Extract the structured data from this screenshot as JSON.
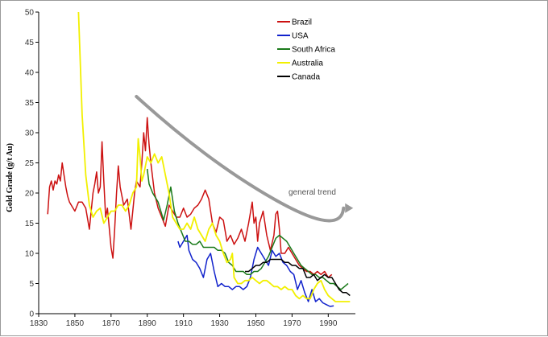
{
  "colors": {
    "brazil": "#cc1111",
    "usa": "#1122cc",
    "south_africa": "#1a7a1a",
    "australia": "#f2f000",
    "canada": "#000000",
    "trend": "#999999"
  },
  "chart_data": {
    "type": "line",
    "title": "",
    "xlabel": "",
    "ylabel": "Gold Grade (g/t Au)",
    "xlim": [
      1830,
      2005
    ],
    "ylim": [
      0,
      50
    ],
    "xticks": [
      1830,
      1850,
      1870,
      1890,
      1910,
      1930,
      1950,
      1970,
      1990
    ],
    "yticks": [
      0,
      5,
      10,
      15,
      20,
      25,
      30,
      35,
      40,
      45,
      50
    ],
    "legend_position": "top-right",
    "annotation": {
      "text": "general trend",
      "arrow": [
        [
          1884,
          36
        ],
        [
          1923,
          24
        ],
        [
          1960,
          19
        ],
        [
          2002,
          17.5
        ]
      ]
    },
    "series": [
      {
        "name": "Brazil",
        "color_key": "brazil",
        "points": [
          [
            1835,
            16.5
          ],
          [
            1836,
            21
          ],
          [
            1837,
            22
          ],
          [
            1838,
            20.5
          ],
          [
            1839,
            22
          ],
          [
            1840,
            21.5
          ],
          [
            1841,
            23
          ],
          [
            1842,
            22
          ],
          [
            1843,
            25
          ],
          [
            1844,
            23
          ],
          [
            1845,
            21
          ],
          [
            1846,
            19.5
          ],
          [
            1847,
            18.5
          ],
          [
            1848,
            18
          ],
          [
            1850,
            17
          ],
          [
            1852,
            18.5
          ],
          [
            1854,
            18.5
          ],
          [
            1856,
            17.5
          ],
          [
            1858,
            14
          ],
          [
            1860,
            20
          ],
          [
            1861,
            21.5
          ],
          [
            1862,
            23.5
          ],
          [
            1863,
            20
          ],
          [
            1864,
            21
          ],
          [
            1865,
            28.5
          ],
          [
            1866,
            22
          ],
          [
            1867,
            16
          ],
          [
            1868,
            17.5
          ],
          [
            1870,
            11
          ],
          [
            1871,
            9.2
          ],
          [
            1872,
            14
          ],
          [
            1873,
            20
          ],
          [
            1874,
            24.5
          ],
          [
            1875,
            21
          ],
          [
            1877,
            18
          ],
          [
            1879,
            19
          ],
          [
            1881,
            14
          ],
          [
            1883,
            20
          ],
          [
            1884,
            22
          ],
          [
            1886,
            21
          ],
          [
            1887,
            25
          ],
          [
            1888,
            30
          ],
          [
            1889,
            27
          ],
          [
            1890,
            32.5
          ],
          [
            1891,
            28
          ],
          [
            1892,
            25
          ],
          [
            1894,
            20
          ],
          [
            1896,
            17.5
          ],
          [
            1898,
            16
          ],
          [
            1900,
            14.5
          ],
          [
            1902,
            18
          ],
          [
            1904,
            17
          ],
          [
            1906,
            16
          ],
          [
            1908,
            16
          ],
          [
            1910,
            17.5
          ],
          [
            1912,
            16
          ],
          [
            1914,
            16.5
          ],
          [
            1916,
            17.5
          ],
          [
            1918,
            18
          ],
          [
            1920,
            19
          ],
          [
            1922,
            20.5
          ],
          [
            1924,
            19
          ],
          [
            1926,
            15
          ],
          [
            1928,
            13.5
          ],
          [
            1930,
            16
          ],
          [
            1932,
            15.5
          ],
          [
            1934,
            12
          ],
          [
            1936,
            13
          ],
          [
            1938,
            11.5
          ],
          [
            1940,
            12.5
          ],
          [
            1942,
            14
          ],
          [
            1944,
            12
          ],
          [
            1946,
            15
          ],
          [
            1948,
            18.5
          ],
          [
            1949,
            15
          ],
          [
            1950,
            16
          ],
          [
            1951,
            12
          ],
          [
            1952,
            15
          ],
          [
            1954,
            17
          ],
          [
            1956,
            13
          ],
          [
            1958,
            10.5
          ],
          [
            1960,
            13
          ],
          [
            1961,
            16.5
          ],
          [
            1962,
            17
          ],
          [
            1963,
            14
          ],
          [
            1964,
            10
          ],
          [
            1966,
            10
          ],
          [
            1968,
            11
          ],
          [
            1970,
            10
          ],
          [
            1972,
            9
          ],
          [
            1974,
            8
          ],
          [
            1976,
            7.5
          ],
          [
            1978,
            7
          ],
          [
            1980,
            7
          ],
          [
            1982,
            6.5
          ],
          [
            1984,
            7
          ],
          [
            1986,
            6.5
          ],
          [
            1988,
            7
          ],
          [
            1990,
            6
          ],
          [
            1992,
            6.5
          ]
        ]
      },
      {
        "name": "USA",
        "color_key": "usa",
        "points": [
          [
            1907,
            12
          ],
          [
            1908,
            11
          ],
          [
            1912,
            13
          ],
          [
            1913,
            10.5
          ],
          [
            1915,
            9
          ],
          [
            1917,
            8.5
          ],
          [
            1919,
            7.5
          ],
          [
            1921,
            6
          ],
          [
            1923,
            9
          ],
          [
            1925,
            10
          ],
          [
            1927,
            7
          ],
          [
            1929,
            4.5
          ],
          [
            1931,
            5
          ],
          [
            1933,
            4.5
          ],
          [
            1935,
            4.5
          ],
          [
            1937,
            4
          ],
          [
            1939,
            4.5
          ],
          [
            1941,
            4.5
          ],
          [
            1943,
            4
          ],
          [
            1945,
            4.5
          ],
          [
            1947,
            6
          ],
          [
            1949,
            9
          ],
          [
            1951,
            11
          ],
          [
            1953,
            10
          ],
          [
            1955,
            9
          ],
          [
            1957,
            8
          ],
          [
            1959,
            10.5
          ],
          [
            1961,
            9.5
          ],
          [
            1963,
            10
          ],
          [
            1965,
            8.5
          ],
          [
            1967,
            8
          ],
          [
            1969,
            7
          ],
          [
            1971,
            6.5
          ],
          [
            1973,
            4
          ],
          [
            1975,
            5.5
          ],
          [
            1977,
            3.5
          ],
          [
            1979,
            2
          ],
          [
            1981,
            4
          ],
          [
            1983,
            2
          ],
          [
            1985,
            2.5
          ],
          [
            1987,
            1.8
          ],
          [
            1989,
            1.5
          ],
          [
            1991,
            1.2
          ],
          [
            1993,
            1.3
          ]
        ]
      },
      {
        "name": "South Africa",
        "color_key": "south_africa",
        "points": [
          [
            1890,
            24
          ],
          [
            1891,
            21.5
          ],
          [
            1893,
            20
          ],
          [
            1896,
            18.5
          ],
          [
            1899,
            15.5
          ],
          [
            1901,
            18
          ],
          [
            1903,
            21
          ],
          [
            1905,
            17
          ],
          [
            1907,
            15
          ],
          [
            1909,
            13.5
          ],
          [
            1911,
            12
          ],
          [
            1913,
            12
          ],
          [
            1915,
            11.5
          ],
          [
            1917,
            11.5
          ],
          [
            1919,
            12
          ],
          [
            1921,
            11
          ],
          [
            1923,
            11
          ],
          [
            1925,
            11
          ],
          [
            1927,
            11
          ],
          [
            1929,
            10.5
          ],
          [
            1931,
            10.5
          ],
          [
            1933,
            10
          ],
          [
            1935,
            8.5
          ],
          [
            1937,
            8
          ],
          [
            1939,
            7
          ],
          [
            1941,
            7
          ],
          [
            1943,
            7
          ],
          [
            1945,
            6.5
          ],
          [
            1947,
            6.5
          ],
          [
            1949,
            7
          ],
          [
            1951,
            7
          ],
          [
            1953,
            7.5
          ],
          [
            1955,
            8.5
          ],
          [
            1957,
            9.5
          ],
          [
            1959,
            11
          ],
          [
            1961,
            12.5
          ],
          [
            1963,
            13
          ],
          [
            1965,
            12.5
          ],
          [
            1967,
            12
          ],
          [
            1969,
            11
          ],
          [
            1971,
            10
          ],
          [
            1973,
            9
          ],
          [
            1975,
            8
          ],
          [
            1977,
            7.5
          ],
          [
            1979,
            7
          ],
          [
            1981,
            6.5
          ],
          [
            1983,
            6.5
          ],
          [
            1985,
            6
          ],
          [
            1987,
            6
          ],
          [
            1989,
            5.5
          ],
          [
            1991,
            5
          ],
          [
            1993,
            5
          ],
          [
            1995,
            4.5
          ],
          [
            1997,
            4
          ],
          [
            1999,
            4.5
          ],
          [
            2001,
            5
          ]
        ]
      },
      {
        "name": "Australia",
        "color_key": "australia",
        "points": [
          [
            1852,
            50
          ],
          [
            1854,
            33
          ],
          [
            1856,
            23
          ],
          [
            1858,
            18
          ],
          [
            1860,
            16
          ],
          [
            1862,
            17
          ],
          [
            1864,
            17.5
          ],
          [
            1866,
            15
          ],
          [
            1868,
            16
          ],
          [
            1870,
            17
          ],
          [
            1872,
            17
          ],
          [
            1874,
            18
          ],
          [
            1876,
            18
          ],
          [
            1878,
            17
          ],
          [
            1880,
            18
          ],
          [
            1882,
            20
          ],
          [
            1884,
            21
          ],
          [
            1885,
            29
          ],
          [
            1886,
            26
          ],
          [
            1887,
            22
          ],
          [
            1888,
            23
          ],
          [
            1890,
            26
          ],
          [
            1892,
            25
          ],
          [
            1894,
            26.5
          ],
          [
            1896,
            25
          ],
          [
            1898,
            26
          ],
          [
            1900,
            23
          ],
          [
            1902,
            20
          ],
          [
            1904,
            16
          ],
          [
            1906,
            15
          ],
          [
            1908,
            14
          ],
          [
            1910,
            14
          ],
          [
            1912,
            15
          ],
          [
            1914,
            14
          ],
          [
            1916,
            16
          ],
          [
            1918,
            14
          ],
          [
            1920,
            13
          ],
          [
            1922,
            12
          ],
          [
            1924,
            14
          ],
          [
            1926,
            15
          ],
          [
            1928,
            13
          ],
          [
            1930,
            12
          ],
          [
            1932,
            10
          ],
          [
            1934,
            8.5
          ],
          [
            1936,
            9
          ],
          [
            1937,
            10
          ],
          [
            1938,
            6
          ],
          [
            1940,
            5
          ],
          [
            1942,
            5
          ],
          [
            1944,
            5.5
          ],
          [
            1946,
            5.5
          ],
          [
            1948,
            6
          ],
          [
            1950,
            5.5
          ],
          [
            1952,
            5
          ],
          [
            1954,
            5.5
          ],
          [
            1956,
            5.5
          ],
          [
            1958,
            5
          ],
          [
            1960,
            4.5
          ],
          [
            1962,
            4.5
          ],
          [
            1964,
            4
          ],
          [
            1966,
            4.5
          ],
          [
            1968,
            4
          ],
          [
            1970,
            4
          ],
          [
            1972,
            3
          ],
          [
            1974,
            2.5
          ],
          [
            1976,
            3
          ],
          [
            1978,
            2.5
          ],
          [
            1980,
            2.5
          ],
          [
            1982,
            4
          ],
          [
            1984,
            5
          ],
          [
            1986,
            5.5
          ],
          [
            1988,
            4
          ],
          [
            1990,
            3
          ],
          [
            1992,
            2.5
          ],
          [
            1994,
            2
          ],
          [
            1996,
            2
          ],
          [
            1998,
            2
          ],
          [
            2000,
            2
          ],
          [
            2002,
            2
          ]
        ]
      },
      {
        "name": "Canada",
        "color_key": "canada",
        "points": [
          [
            1944,
            7
          ],
          [
            1946,
            7
          ],
          [
            1948,
            7.5
          ],
          [
            1950,
            8
          ],
          [
            1952,
            8
          ],
          [
            1954,
            8.5
          ],
          [
            1956,
            8.5
          ],
          [
            1958,
            9
          ],
          [
            1960,
            9
          ],
          [
            1962,
            9
          ],
          [
            1964,
            9
          ],
          [
            1966,
            8.5
          ],
          [
            1968,
            8.5
          ],
          [
            1970,
            8
          ],
          [
            1972,
            8
          ],
          [
            1974,
            7.5
          ],
          [
            1976,
            7.5
          ],
          [
            1978,
            6
          ],
          [
            1980,
            6
          ],
          [
            1982,
            6.5
          ],
          [
            1984,
            5.5
          ],
          [
            1986,
            6
          ],
          [
            1988,
            6.5
          ],
          [
            1990,
            6
          ],
          [
            1992,
            6
          ],
          [
            1994,
            5
          ],
          [
            1996,
            4
          ],
          [
            1998,
            3.5
          ],
          [
            2000,
            3.5
          ],
          [
            2002,
            3
          ]
        ]
      }
    ]
  }
}
